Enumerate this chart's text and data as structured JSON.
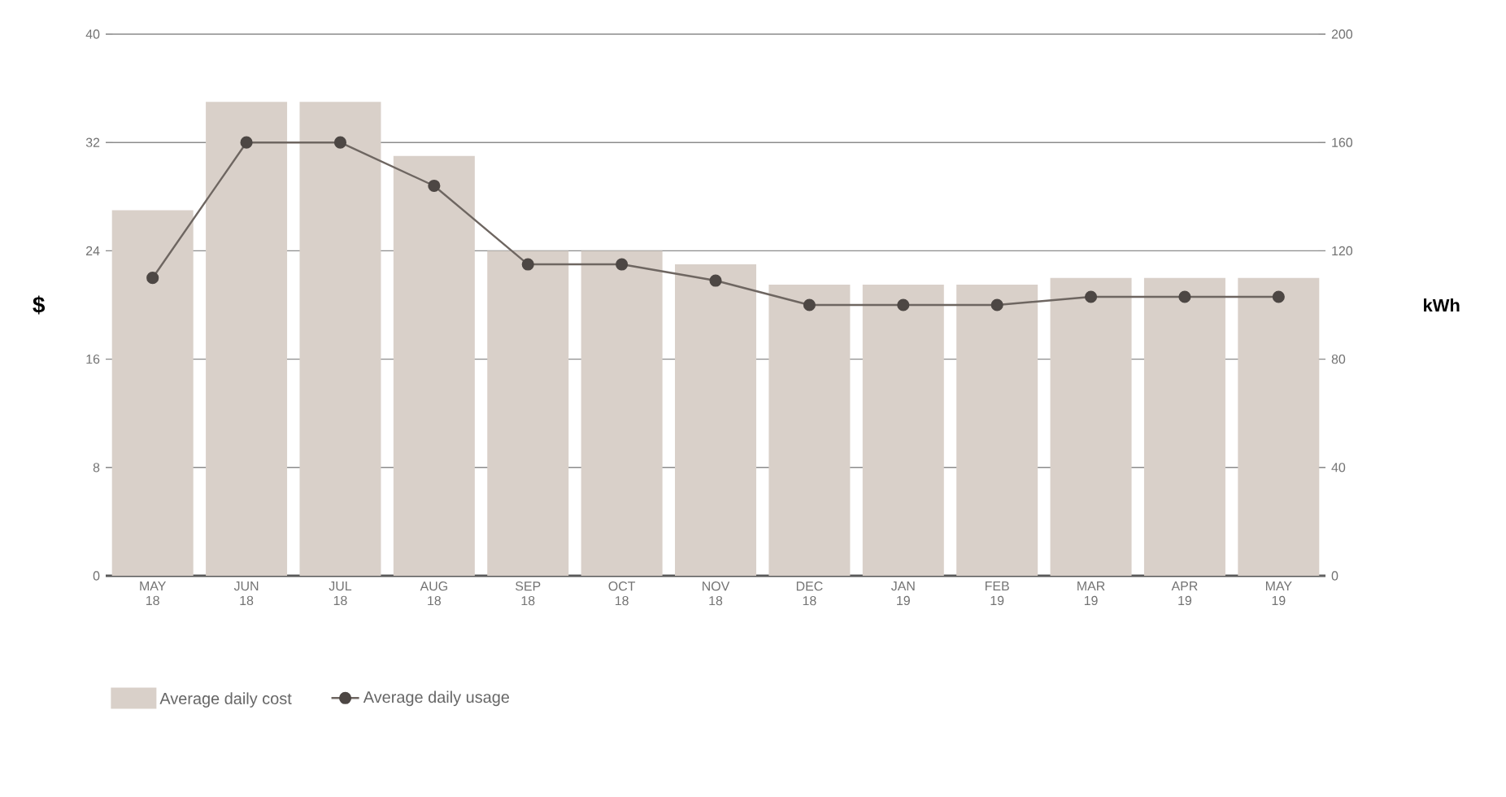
{
  "chart_data": {
    "type": "bar",
    "categories": [
      "MAY 18",
      "JUN 18",
      "JUL 18",
      "AUG 18",
      "SEP 18",
      "OCT 18",
      "NOV 18",
      "DEC 18",
      "JAN 19",
      "FEB 19",
      "MAR 19",
      "APR 19",
      "MAY 19"
    ],
    "series": [
      {
        "name": "Average daily cost",
        "color": "#d9d0c9",
        "values": [
          27,
          35,
          35,
          31,
          24,
          24,
          23,
          21.5,
          21.5,
          21.5,
          22,
          22,
          22
        ]
      },
      {
        "name": "Average daily usage",
        "type": "line",
        "axis": "y2",
        "color": "#6e6661",
        "marker": "circle",
        "values": [
          110,
          160,
          160,
          144,
          115,
          115,
          109,
          100,
          100,
          100,
          103,
          103,
          103
        ]
      }
    ],
    "ylabel": "$",
    "y2label": "kWh",
    "ylim": [
      0,
      40
    ],
    "yticks": [
      0,
      8,
      16,
      24,
      32,
      40
    ],
    "y2lim": [
      0,
      200
    ],
    "y2ticks": [
      0,
      40,
      80,
      120,
      160,
      200
    ],
    "grid": "y",
    "legend": "bottom"
  }
}
